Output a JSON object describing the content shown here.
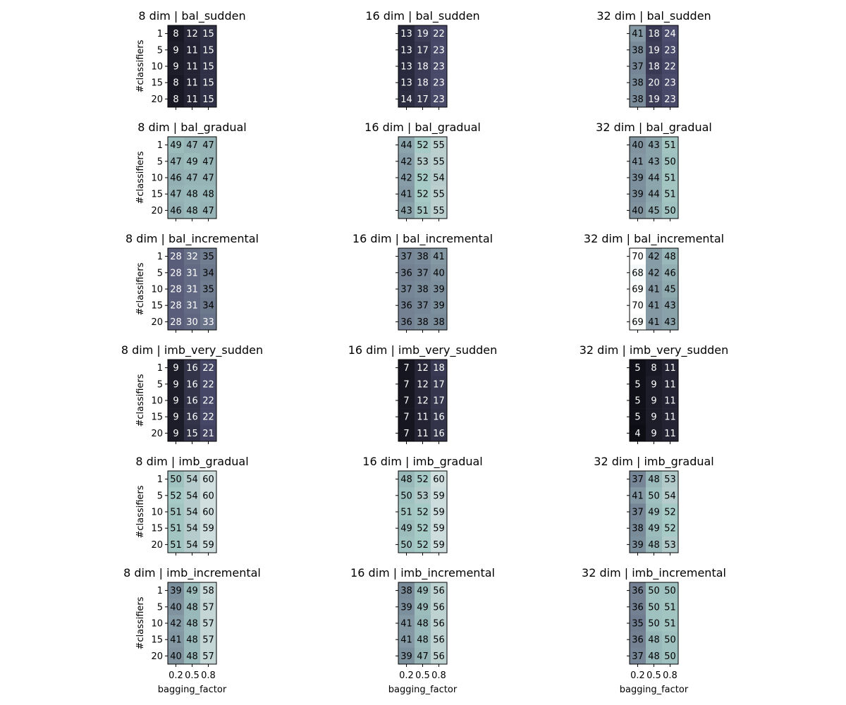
{
  "chart_data": {
    "type": "heatmap",
    "colormap": "bone",
    "color_range": [
      0,
      70
    ],
    "shared_x": {
      "label": "bagging_factor",
      "ticks": [
        "0.2",
        "0.5",
        "0.8"
      ]
    },
    "shared_y": {
      "label": "#classifiers",
      "ticks": [
        "1",
        "5",
        "10",
        "15",
        "20"
      ]
    },
    "panels": [
      {
        "title": "8 dim | bal_sudden",
        "values": [
          [
            8,
            12,
            15
          ],
          [
            9,
            11,
            15
          ],
          [
            9,
            11,
            15
          ],
          [
            8,
            11,
            15
          ],
          [
            8,
            11,
            15
          ]
        ]
      },
      {
        "title": "16 dim | bal_sudden",
        "values": [
          [
            13,
            19,
            22
          ],
          [
            13,
            17,
            23
          ],
          [
            13,
            18,
            23
          ],
          [
            13,
            18,
            23
          ],
          [
            14,
            17,
            23
          ]
        ]
      },
      {
        "title": "32 dim | bal_sudden",
        "values": [
          [
            41,
            18,
            24
          ],
          [
            38,
            19,
            23
          ],
          [
            37,
            18,
            22
          ],
          [
            38,
            20,
            23
          ],
          [
            38,
            19,
            23
          ]
        ]
      },
      {
        "title": "8 dim | bal_gradual",
        "values": [
          [
            49,
            47,
            47
          ],
          [
            47,
            49,
            47
          ],
          [
            46,
            47,
            47
          ],
          [
            47,
            48,
            48
          ],
          [
            46,
            48,
            47
          ]
        ]
      },
      {
        "title": "16 dim | bal_gradual",
        "values": [
          [
            44,
            52,
            55
          ],
          [
            42,
            53,
            55
          ],
          [
            42,
            52,
            54
          ],
          [
            41,
            52,
            55
          ],
          [
            43,
            51,
            55
          ]
        ]
      },
      {
        "title": "32 dim | bal_gradual",
        "values": [
          [
            40,
            43,
            51
          ],
          [
            41,
            43,
            50
          ],
          [
            39,
            44,
            51
          ],
          [
            39,
            44,
            51
          ],
          [
            40,
            45,
            50
          ]
        ]
      },
      {
        "title": "8 dim | bal_incremental",
        "values": [
          [
            28,
            32,
            35
          ],
          [
            28,
            31,
            34
          ],
          [
            28,
            31,
            35
          ],
          [
            28,
            31,
            34
          ],
          [
            28,
            30,
            33
          ]
        ]
      },
      {
        "title": "16 dim | bal_incremental",
        "values": [
          [
            37,
            38,
            41
          ],
          [
            36,
            37,
            40
          ],
          [
            37,
            38,
            39
          ],
          [
            36,
            37,
            39
          ],
          [
            36,
            38,
            38
          ]
        ]
      },
      {
        "title": "32 dim | bal_incremental",
        "values": [
          [
            70,
            42,
            48
          ],
          [
            68,
            42,
            46
          ],
          [
            69,
            41,
            45
          ],
          [
            70,
            41,
            43
          ],
          [
            69,
            41,
            43
          ]
        ]
      },
      {
        "title": "8 dim | imb_very_sudden",
        "values": [
          [
            9,
            16,
            22
          ],
          [
            9,
            16,
            22
          ],
          [
            9,
            16,
            22
          ],
          [
            9,
            16,
            22
          ],
          [
            9,
            15,
            21
          ]
        ]
      },
      {
        "title": "16 dim | imb_very_sudden",
        "values": [
          [
            7,
            12,
            18
          ],
          [
            7,
            12,
            17
          ],
          [
            7,
            12,
            17
          ],
          [
            7,
            11,
            16
          ],
          [
            7,
            11,
            16
          ]
        ]
      },
      {
        "title": "32 dim | imb_very_sudden",
        "values": [
          [
            5,
            8,
            11
          ],
          [
            5,
            9,
            11
          ],
          [
            5,
            9,
            11
          ],
          [
            5,
            9,
            11
          ],
          [
            4,
            9,
            11
          ]
        ]
      },
      {
        "title": "8 dim | imb_gradual",
        "values": [
          [
            50,
            54,
            60
          ],
          [
            52,
            54,
            60
          ],
          [
            51,
            54,
            60
          ],
          [
            51,
            54,
            59
          ],
          [
            51,
            54,
            59
          ]
        ]
      },
      {
        "title": "16 dim | imb_gradual",
        "values": [
          [
            48,
            52,
            60
          ],
          [
            50,
            53,
            59
          ],
          [
            51,
            52,
            59
          ],
          [
            49,
            52,
            59
          ],
          [
            50,
            52,
            59
          ]
        ]
      },
      {
        "title": "32 dim | imb_gradual",
        "values": [
          [
            37,
            48,
            53
          ],
          [
            41,
            50,
            54
          ],
          [
            37,
            49,
            52
          ],
          [
            38,
            49,
            52
          ],
          [
            39,
            48,
            53
          ]
        ]
      },
      {
        "title": "8 dim | imb_incremental",
        "values": [
          [
            39,
            49,
            58
          ],
          [
            40,
            48,
            57
          ],
          [
            42,
            48,
            57
          ],
          [
            41,
            48,
            57
          ],
          [
            40,
            48,
            57
          ]
        ]
      },
      {
        "title": "16 dim | imb_incremental",
        "values": [
          [
            38,
            49,
            56
          ],
          [
            39,
            49,
            56
          ],
          [
            41,
            48,
            56
          ],
          [
            41,
            48,
            56
          ],
          [
            39,
            47,
            56
          ]
        ]
      },
      {
        "title": "32 dim | imb_incremental",
        "values": [
          [
            36,
            50,
            50
          ],
          [
            36,
            50,
            51
          ],
          [
            35,
            50,
            51
          ],
          [
            36,
            48,
            50
          ],
          [
            37,
            48,
            50
          ]
        ]
      }
    ]
  }
}
